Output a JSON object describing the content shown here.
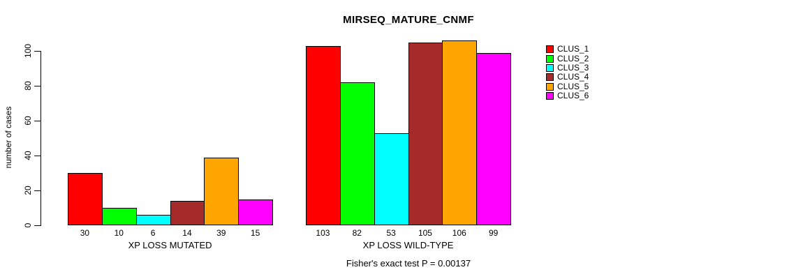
{
  "figure": {
    "background": "#ffffff"
  },
  "chart_data": {
    "type": "bar",
    "title": "MIRSEQ_MATURE_CNMF",
    "xlabel": "",
    "ylabel": "number of cases",
    "ylim": [
      0,
      106
    ],
    "yticks": [
      0,
      20,
      40,
      60,
      80,
      100
    ],
    "grid": false,
    "bar_value_labels": true,
    "categories": [
      "CLUS_1",
      "CLUS_2",
      "CLUS_3",
      "CLUS_4",
      "CLUS_5",
      "CLUS_6"
    ],
    "colors": [
      "#ff0000",
      "#00ff00",
      "#00ffff",
      "#a52a2a",
      "#ffa500",
      "#ff00ff"
    ],
    "groups": [
      {
        "label": "XP LOSS MUTATED",
        "values": [
          30,
          10,
          6,
          14,
          39,
          15
        ]
      },
      {
        "label": "XP LOSS WILD-TYPE",
        "values": [
          103,
          82,
          53,
          105,
          106,
          99
        ]
      }
    ],
    "legend": {
      "position": "right",
      "entries": [
        {
          "label": "CLUS_1",
          "color": "#ff0000"
        },
        {
          "label": "CLUS_2",
          "color": "#00ff00"
        },
        {
          "label": "CLUS_3",
          "color": "#00ffff"
        },
        {
          "label": "CLUS_4",
          "color": "#a52a2a"
        },
        {
          "label": "CLUS_5",
          "color": "#ffa500"
        },
        {
          "label": "CLUS_6",
          "color": "#ff00ff"
        }
      ]
    },
    "footnote": "Fisher's exact test P = 0.00137"
  }
}
